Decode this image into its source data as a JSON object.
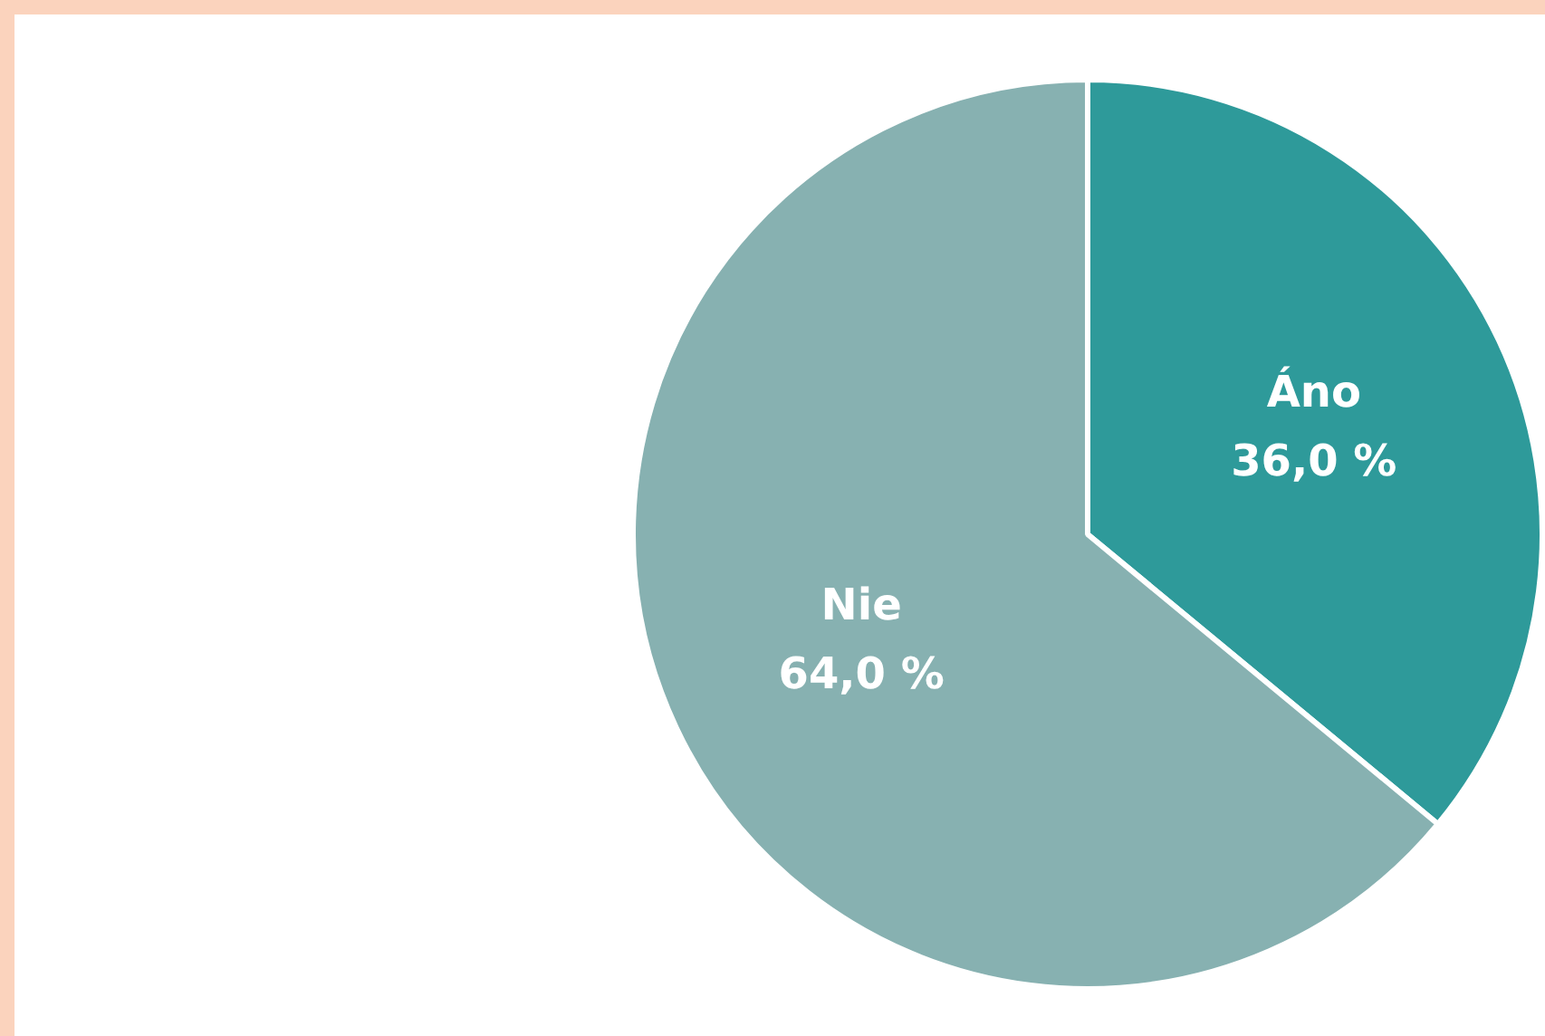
{
  "chart_data": {
    "type": "pie",
    "categories": [
      "Áno",
      "Nie"
    ],
    "values": [
      36,
      64
    ],
    "colors": [
      "#2e9a9a",
      "#87b1b1"
    ],
    "value_labels": [
      "36,0 %",
      "64,0 %"
    ],
    "legend": false
  }
}
